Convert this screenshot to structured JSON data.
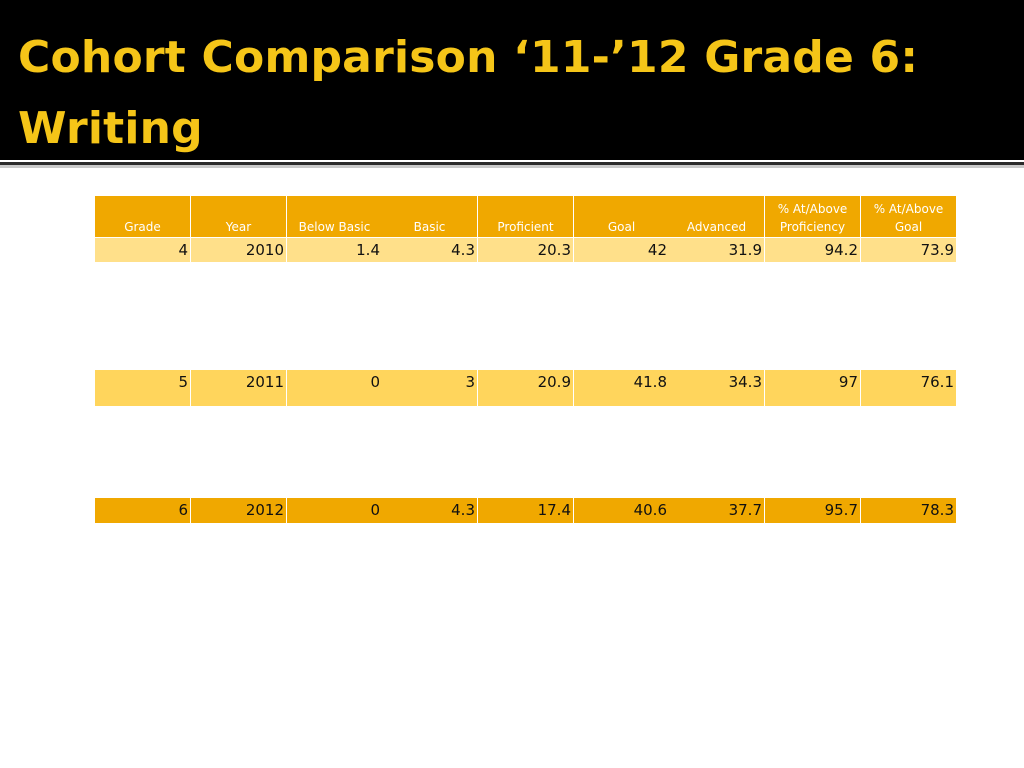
{
  "slide": {
    "title": "Cohort Comparison ‘11-’12 Grade 6: Writing"
  },
  "table": {
    "headers": [
      "Grade",
      "Year",
      "Below Basic",
      "Basic",
      "Proficient",
      "Goal",
      "Advanced",
      "% At/Above Proficiency",
      "% At/Above Goal"
    ],
    "rows": [
      [
        "4",
        "2010",
        "1.4",
        "4.3",
        "20.3",
        "42",
        "31.9",
        "94.2",
        "73.9"
      ],
      [
        "5",
        "2011",
        "0",
        "3",
        "20.9",
        "41.8",
        "34.3",
        "97",
        "76.1"
      ],
      [
        "6",
        "2012",
        "0",
        "4.3",
        "17.4",
        "40.6",
        "37.7",
        "95.7",
        "78.3"
      ]
    ]
  },
  "colors": {
    "title": "#f5c518",
    "header_background": "#000000",
    "table_header": "#f0a800",
    "row_2010": "#ffe08a",
    "row_2011": "#ffd55c",
    "row_2012": "#f0a800"
  }
}
